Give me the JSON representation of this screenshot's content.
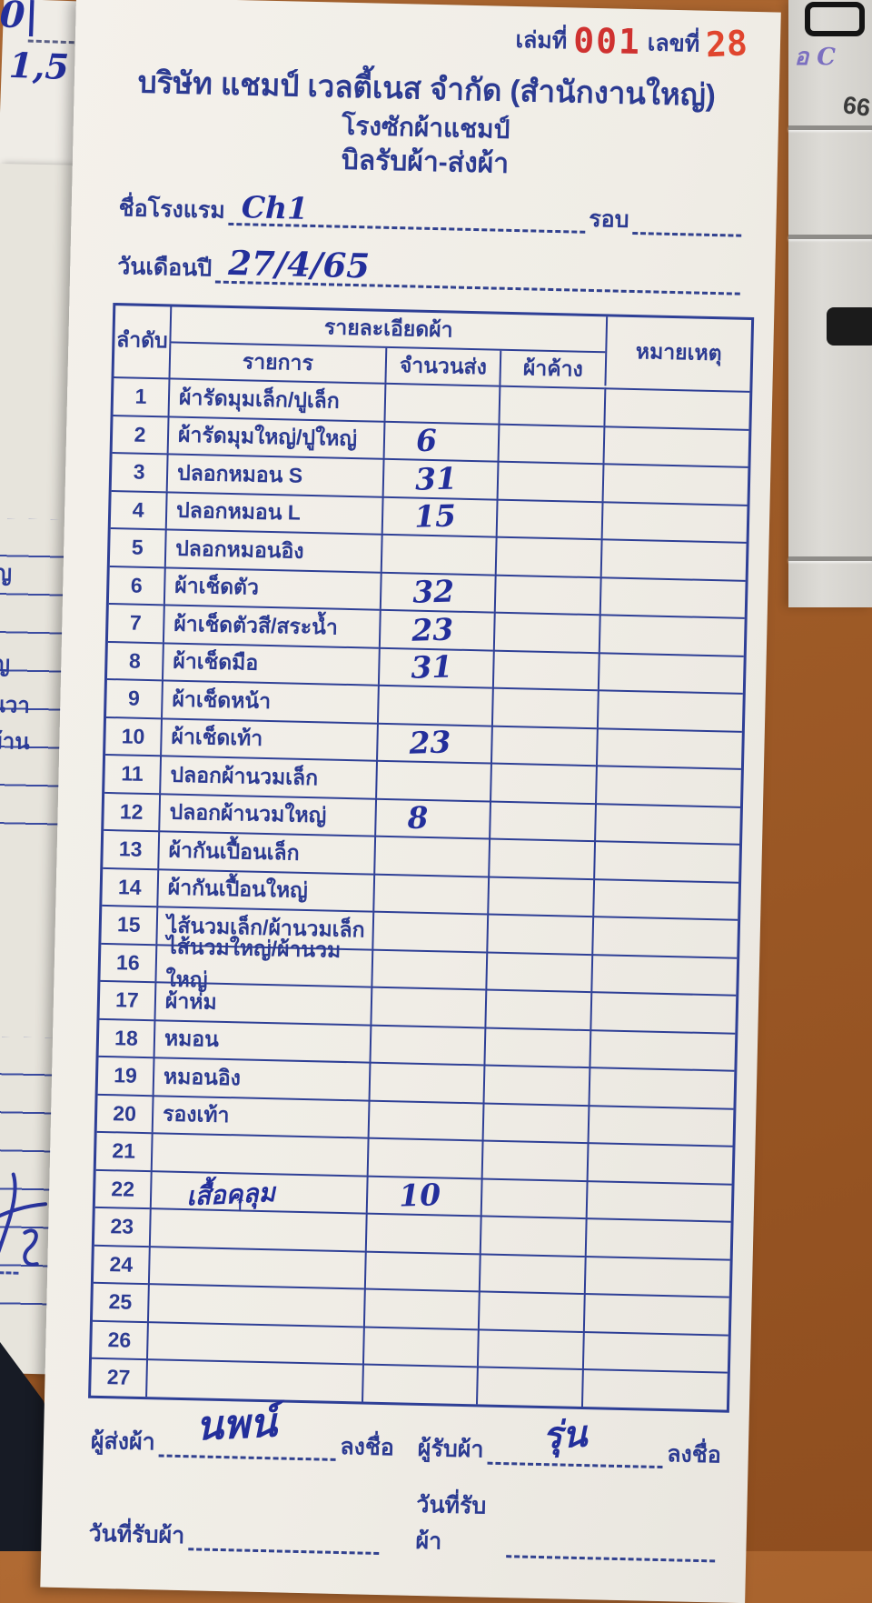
{
  "meta": {
    "book_label": "เล่มที่",
    "book_no": "001",
    "no_label": "เลขที่",
    "no_value": "28"
  },
  "header": {
    "company": "บริษัท แชมป์ เวลตี้เนส จำกัด (สำนักงานใหญ่)",
    "laundry": "โรงซักผ้าแชมป์",
    "title": "บิลรับผ้า-ส่งผ้า"
  },
  "fields": {
    "hotel_label": "ชื่อโรงแรม",
    "hotel_value": "Ch1",
    "round_label": "รอบ",
    "round_value": "",
    "date_label": "วันเดือนปี",
    "date_value": "27/4/65"
  },
  "table": {
    "col_no": "ลำดับ",
    "col_group": "รายละเอียดผ้า",
    "col_item": "รายการ",
    "col_sent": "จำนวนส่ง",
    "col_owed": "ผ้าค้าง",
    "col_remark": "หมายเหตุ",
    "rows": [
      {
        "no": "1",
        "item": "ผ้ารัดมุมเล็ก/ปูเล็ก",
        "sent": "",
        "owed": "",
        "remark": ""
      },
      {
        "no": "2",
        "item": "ผ้ารัดมุมใหญ่/ปูใหญ่",
        "sent": "6",
        "owed": "",
        "remark": ""
      },
      {
        "no": "3",
        "item": "ปลอกหมอน S",
        "sent": "31",
        "owed": "",
        "remark": ""
      },
      {
        "no": "4",
        "item": "ปลอกหมอน L",
        "sent": "15",
        "owed": "",
        "remark": ""
      },
      {
        "no": "5",
        "item": "ปลอกหมอนอิง",
        "sent": "",
        "owed": "",
        "remark": ""
      },
      {
        "no": "6",
        "item": "ผ้าเช็ดตัว",
        "sent": "32",
        "owed": "",
        "remark": ""
      },
      {
        "no": "7",
        "item": "ผ้าเช็ดตัวสี/สระน้ำ",
        "sent": "23",
        "owed": "",
        "remark": ""
      },
      {
        "no": "8",
        "item": "ผ้าเช็ดมือ",
        "sent": "31",
        "owed": "",
        "remark": ""
      },
      {
        "no": "9",
        "item": "ผ้าเช็ดหน้า",
        "sent": "",
        "owed": "",
        "remark": ""
      },
      {
        "no": "10",
        "item": "ผ้าเช็ดเท้า",
        "sent": "23",
        "owed": "",
        "remark": ""
      },
      {
        "no": "11",
        "item": "ปลอกผ้านวมเล็ก",
        "sent": "",
        "owed": "",
        "remark": ""
      },
      {
        "no": "12",
        "item": "ปลอกผ้านวมใหญ่",
        "sent": "8",
        "owed": "",
        "remark": ""
      },
      {
        "no": "13",
        "item": "ผ้ากันเปื้อนเล็ก",
        "sent": "",
        "owed": "",
        "remark": ""
      },
      {
        "no": "14",
        "item": "ผ้ากันเปื้อนใหญ่",
        "sent": "",
        "owed": "",
        "remark": ""
      },
      {
        "no": "15",
        "item": "ไส้นวมเล็ก/ผ้านวมเล็ก",
        "sent": "",
        "owed": "",
        "remark": ""
      },
      {
        "no": "16",
        "item": "ไส้นวมใหญ่/ผ้านวมใหญ่",
        "sent": "",
        "owed": "",
        "remark": ""
      },
      {
        "no": "17",
        "item": "ผ้าห่ม",
        "sent": "",
        "owed": "",
        "remark": ""
      },
      {
        "no": "18",
        "item": "หมอน",
        "sent": "",
        "owed": "",
        "remark": ""
      },
      {
        "no": "19",
        "item": "หมอนอิง",
        "sent": "",
        "owed": "",
        "remark": ""
      },
      {
        "no": "20",
        "item": "รองเท้า",
        "sent": "",
        "owed": "",
        "remark": ""
      },
      {
        "no": "21",
        "item": "",
        "sent": "",
        "owed": "",
        "remark": ""
      },
      {
        "no": "22",
        "item": "เสื้อคลุม",
        "handwritten_item": true,
        "item_mark": "↑",
        "sent": "10",
        "owed": "",
        "remark": ""
      },
      {
        "no": "23",
        "item": "",
        "sent": "",
        "owed": "",
        "remark": ""
      },
      {
        "no": "24",
        "item": "",
        "sent": "",
        "owed": "",
        "remark": ""
      },
      {
        "no": "25",
        "item": "",
        "sent": "",
        "owed": "",
        "remark": ""
      },
      {
        "no": "26",
        "item": "",
        "sent": "",
        "owed": "",
        "remark": ""
      },
      {
        "no": "27",
        "item": "",
        "sent": "",
        "owed": "",
        "remark": ""
      }
    ]
  },
  "footer": {
    "sender_label": "ผู้ส่งผ้า",
    "sender_signature": "นพน์",
    "sign_label": "ลงชื่อ",
    "receiver_label": "ผู้รับผ้า",
    "receiver_signature": "รุ่น",
    "date_received_label": "วันที่รับผ้า"
  },
  "surroundings": {
    "corner_note_1": "0|",
    "corner_note_2": "1,5",
    "left_paper_fragments": [
      "ญ",
      "ญ",
      "นวา",
      "ผ้าน"
    ],
    "left_paper_dash_fragment": "ก",
    "device_handwriting": "อ C",
    "device_number": "66"
  },
  "colors": {
    "form_print_blue": "#2c3b92",
    "handwriting_blue": "#232f9b",
    "stamp_red_book": "#cf3230",
    "stamp_red_no": "#e0452e",
    "paper": "#f2efe9",
    "desk_wood": "#a05c28",
    "device_body": "#d8d6d1",
    "dark_object": "#171b25"
  }
}
